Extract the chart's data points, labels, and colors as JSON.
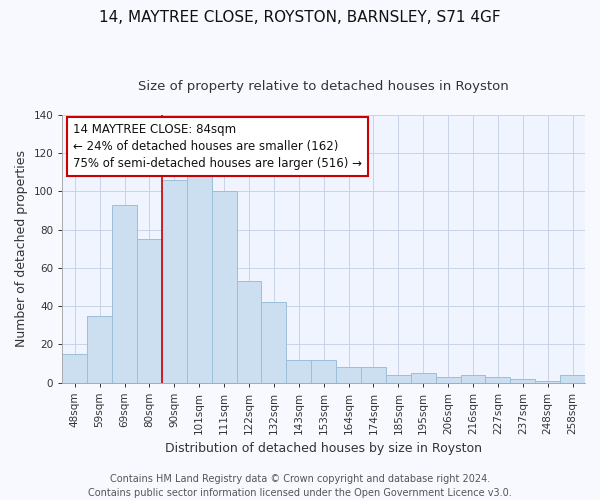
{
  "title": "14, MAYTREE CLOSE, ROYSTON, BARNSLEY, S71 4GF",
  "subtitle": "Size of property relative to detached houses in Royston",
  "xlabel": "Distribution of detached houses by size in Royston",
  "ylabel": "Number of detached properties",
  "bar_labels": [
    "48sqm",
    "59sqm",
    "69sqm",
    "80sqm",
    "90sqm",
    "101sqm",
    "111sqm",
    "122sqm",
    "132sqm",
    "143sqm",
    "153sqm",
    "164sqm",
    "174sqm",
    "185sqm",
    "195sqm",
    "206sqm",
    "216sqm",
    "227sqm",
    "237sqm",
    "248sqm",
    "258sqm"
  ],
  "bar_values": [
    15,
    35,
    93,
    75,
    106,
    113,
    100,
    53,
    42,
    12,
    12,
    8,
    8,
    4,
    5,
    3,
    4,
    3,
    2,
    1,
    4
  ],
  "bar_color": "#ccdff0",
  "bar_edge_color": "#9bbfd8",
  "vline_color": "#cc0000",
  "annotation_line1": "14 MAYTREE CLOSE: 84sqm",
  "annotation_line2": "← 24% of detached houses are smaller (162)",
  "annotation_line3": "75% of semi-detached houses are larger (516) →",
  "ylim": [
    0,
    140
  ],
  "yticks": [
    0,
    20,
    40,
    60,
    80,
    100,
    120,
    140
  ],
  "footer_line1": "Contains HM Land Registry data © Crown copyright and database right 2024.",
  "footer_line2": "Contains public sector information licensed under the Open Government Licence v3.0.",
  "background_color": "#f8f9ff",
  "plot_bg_color": "#f0f4ff",
  "grid_color": "#c8d4e8",
  "title_fontsize": 11,
  "subtitle_fontsize": 9.5,
  "axis_label_fontsize": 9,
  "tick_fontsize": 7.5,
  "annotation_fontsize": 8.5,
  "footer_fontsize": 7
}
